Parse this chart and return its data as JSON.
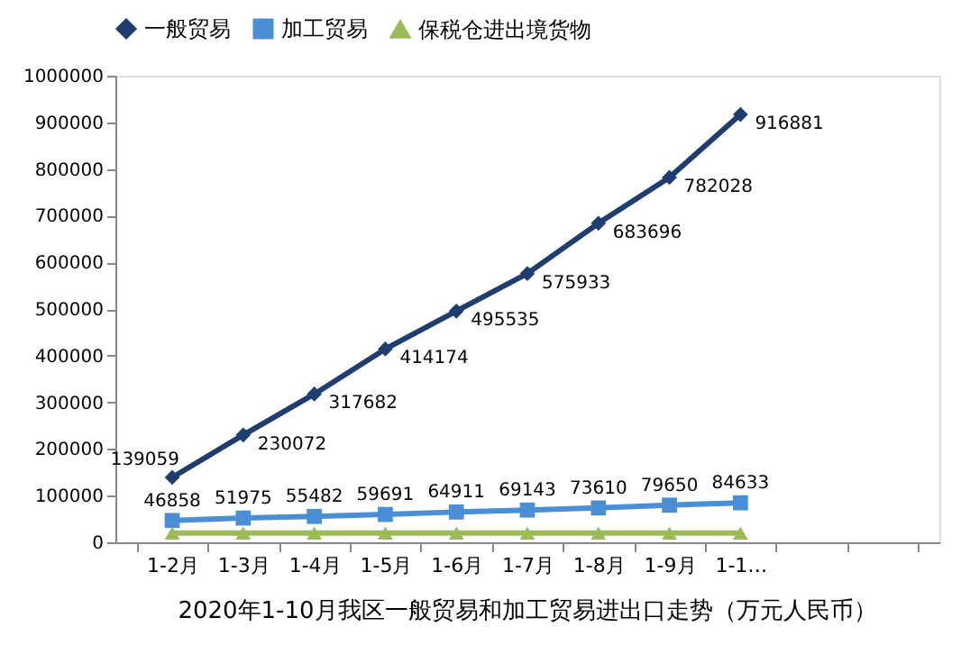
{
  "chart_data": {
    "type": "line",
    "title": "2020年1-10月我区一般贸易和加工贸易进出口走势（万元人民币）",
    "categories": [
      "1-2月",
      "1-3月",
      "1-4月",
      "1-5月",
      "1-6月",
      "1-7月",
      "1-8月",
      "1-9月",
      "1-1…",
      null,
      null
    ],
    "series": [
      {
        "name": "一般贸易",
        "color": "#1f3d6e",
        "marker": "diamond",
        "values": [
          139059,
          230072,
          317682,
          414174,
          495535,
          575933,
          683696,
          782028,
          916881,
          null,
          null
        ],
        "value_labels": [
          "139059",
          "230072",
          "317682",
          "414174",
          "495535",
          "575933",
          "683696",
          "782028",
          "916881",
          null,
          null
        ]
      },
      {
        "name": "加工贸易",
        "color": "#4a8fd6",
        "marker": "square",
        "values": [
          46858,
          51975,
          55482,
          59691,
          64911,
          69143,
          73610,
          79650,
          84633,
          null,
          null
        ],
        "value_labels": [
          "46858",
          "51975",
          "55482",
          "59691",
          "64911",
          "69143",
          "73610",
          "79650",
          "84633",
          null,
          null
        ]
      },
      {
        "name": "保税仓进出境货物",
        "color": "#9bbb59",
        "marker": "triangle",
        "values": [
          20000,
          20000,
          20000,
          20000,
          20000,
          20000,
          20000,
          20000,
          20000,
          null,
          null
        ]
      }
    ],
    "ylim": [
      0,
      1000000
    ],
    "yticks": [
      0,
      100000,
      200000,
      300000,
      400000,
      500000,
      600000,
      700000,
      800000,
      900000,
      1000000
    ],
    "grid": false,
    "legend": "top"
  }
}
